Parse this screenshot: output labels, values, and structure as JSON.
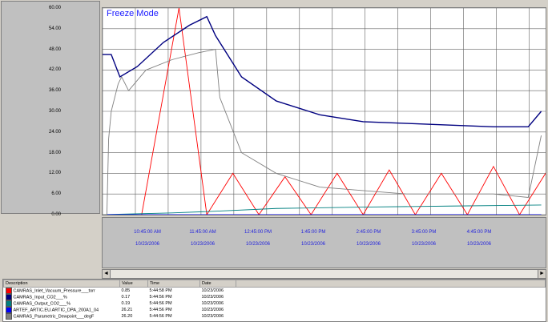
{
  "chart_data": {
    "type": "line",
    "title": "Freeze Mode",
    "ylim": [
      0,
      60
    ],
    "y_ticks": [
      "60.00",
      "54.00",
      "48.00",
      "42.00",
      "36.00",
      "30.00",
      "24.00",
      "18.00",
      "12.00",
      "6.00",
      "0.00"
    ],
    "x_ticks": [
      {
        "time": "10:45:00 AM",
        "date": "10/23/2006"
      },
      {
        "time": "11:45:00 AM",
        "date": "10/23/2006"
      },
      {
        "time": "12:45:00 PM",
        "date": "10/23/2006"
      },
      {
        "time": "1:45:00 PM",
        "date": "10/23/2006"
      },
      {
        "time": "2:45:00 PM",
        "date": "10/23/2006"
      },
      {
        "time": "3:45:00 PM",
        "date": "10/23/2006"
      },
      {
        "time": "4:45:00 PM",
        "date": "10/23/2006"
      }
    ],
    "grid": true,
    "series": [
      {
        "name": "CAMRAS_Inlet_Vacuum_Pressure___torr",
        "color": "#ff0000",
        "x": [
          0,
          0.45,
          0.88,
          1.2,
          1.5,
          1.8,
          2.1,
          2.4,
          2.7,
          3.0,
          3.3,
          3.6,
          3.9,
          4.2,
          4.5,
          4.8,
          5.1,
          5.4
        ],
        "y": [
          0,
          0,
          60,
          0,
          12,
          0,
          11,
          0,
          12,
          0,
          13,
          0,
          12,
          0,
          14,
          0,
          12,
          0
        ]
      },
      {
        "name": "CAMRAS_Input_CO2___%",
        "color": "#000080",
        "x": [
          0,
          0.1,
          0.2,
          0.4,
          0.7,
          1.0,
          1.2,
          1.3,
          1.6,
          2.0,
          2.5,
          3.0,
          3.5,
          4.0,
          4.5,
          4.9,
          5.05
        ],
        "y": [
          46.5,
          46.5,
          40,
          43,
          50,
          55,
          57.5,
          52,
          40,
          33,
          29,
          27,
          26.5,
          26,
          25.5,
          25.5,
          30
        ]
      },
      {
        "name": "CAMRAS_Output_CO2___%",
        "color": "#008080",
        "x": [
          0,
          0.8,
          1.3,
          2.0,
          3.0,
          4.0,
          5.05
        ],
        "y": [
          0,
          0.5,
          1,
          1.8,
          2.2,
          2.5,
          2.8
        ]
      },
      {
        "name": "ARTEF_ARTIC.EU.ARTIC_DPA_200A1_04",
        "color": "#0000ff",
        "x": [
          0,
          5.05
        ],
        "y": [
          0,
          0
        ]
      },
      {
        "name": "CAMRAS_Parametric_Dewpoint___degF",
        "color": "#808080",
        "x": [
          0,
          0.05,
          0.07,
          0.1,
          0.18,
          0.22,
          0.3,
          0.5,
          0.8,
          1.1,
          1.3,
          1.35,
          1.6,
          2.0,
          2.5,
          3.0,
          3.5,
          4.0,
          4.5,
          4.9,
          5.05
        ],
        "y": [
          0,
          0,
          22,
          30,
          38,
          40,
          36,
          42,
          45,
          47,
          48,
          34,
          18,
          12,
          8,
          7,
          6,
          6,
          6,
          5,
          23
        ]
      }
    ],
    "legend": {
      "headers": [
        "Description",
        "Value",
        "Time",
        "Date"
      ],
      "rows": [
        {
          "desc": "CAMRAS_Inlet_Vacuum_Pressure___torr",
          "value": "0.85",
          "time": "5:44:58 PM",
          "date": "10/23/2006",
          "color": "#ff0000"
        },
        {
          "desc": "CAMRAS_Input_CO2___%",
          "value": "0.17",
          "time": "5:44:56 PM",
          "date": "10/23/2006",
          "color": "#000080"
        },
        {
          "desc": "CAMRAS_Output_CO2___%",
          "value": "0.19",
          "time": "5:44:56 PM",
          "date": "10/23/2006",
          "color": "#008080"
        },
        {
          "desc": "ARTEF_ARTIC.EU.ARTIC_DPA_200A1_04",
          "value": "26.21",
          "time": "5:44:56 PM",
          "date": "10/23/2006",
          "color": "#0000ff"
        },
        {
          "desc": "CAMRAS_Parametric_Dewpoint___degF",
          "value": "26.20",
          "time": "5:44:56 PM",
          "date": "10/23/2006",
          "color": "#808080"
        }
      ]
    }
  }
}
